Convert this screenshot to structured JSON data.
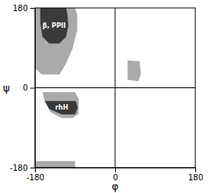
{
  "chart_data": {
    "type": "polygon",
    "xlabel": "φ",
    "ylabel": "ψ",
    "xlim": [
      -180,
      180
    ],
    "ylim": [
      -180,
      180
    ],
    "xticks": [
      -180,
      0,
      180
    ],
    "yticks": [
      -180,
      0,
      180
    ],
    "hlines": [
      0
    ],
    "vlines": [
      0
    ],
    "series": [
      {
        "color": "#aaaaaa",
        "x": [
          -180,
          -90,
          -85,
          -85,
          -95,
          -110,
          -125,
          -165,
          -180,
          -180
        ],
        "values": [
          180,
          180,
          165,
          130,
          90,
          55,
          30,
          30,
          45,
          180
        ]
      },
      {
        "color": "#3a3a3a",
        "x": [
          -165,
          -110,
          -107,
          -105,
          -110,
          -125,
          -148,
          -163,
          -168,
          -168
        ],
        "values": [
          180,
          180,
          165,
          140,
          115,
          100,
          100,
          115,
          145,
          180
        ]
      },
      {
        "color": "#aaaaaa",
        "x": [
          -180,
          -90,
          -82,
          -82,
          -95,
          -120,
          -145,
          -158,
          -163,
          -180
        ],
        "values": [
          -10,
          -10,
          -25,
          -58,
          -68,
          -68,
          -55,
          -30,
          -10,
          -10
        ]
      },
      {
        "color": "#3a3a3a",
        "x": [
          -160,
          -88,
          -84,
          -90,
          -120,
          -148,
          -158
        ],
        "values": [
          -30,
          -30,
          -45,
          -60,
          -60,
          -48,
          -30
        ]
      },
      {
        "color": "#aaaaaa",
        "x": [
          -180,
          -90,
          -90,
          -180
        ],
        "values": [
          -165,
          -165,
          -180,
          -180
        ]
      },
      {
        "color": "#aaaaaa",
        "x": [
          28,
          55,
          58,
          52,
          28
        ],
        "values": [
          62,
          60,
          30,
          15,
          18
        ]
      }
    ],
    "annotations": [
      {
        "text": "β,  PPII",
        "x": -137,
        "y": 140
      },
      {
        "text": "rhH",
        "x": -120,
        "y": -45
      }
    ]
  }
}
